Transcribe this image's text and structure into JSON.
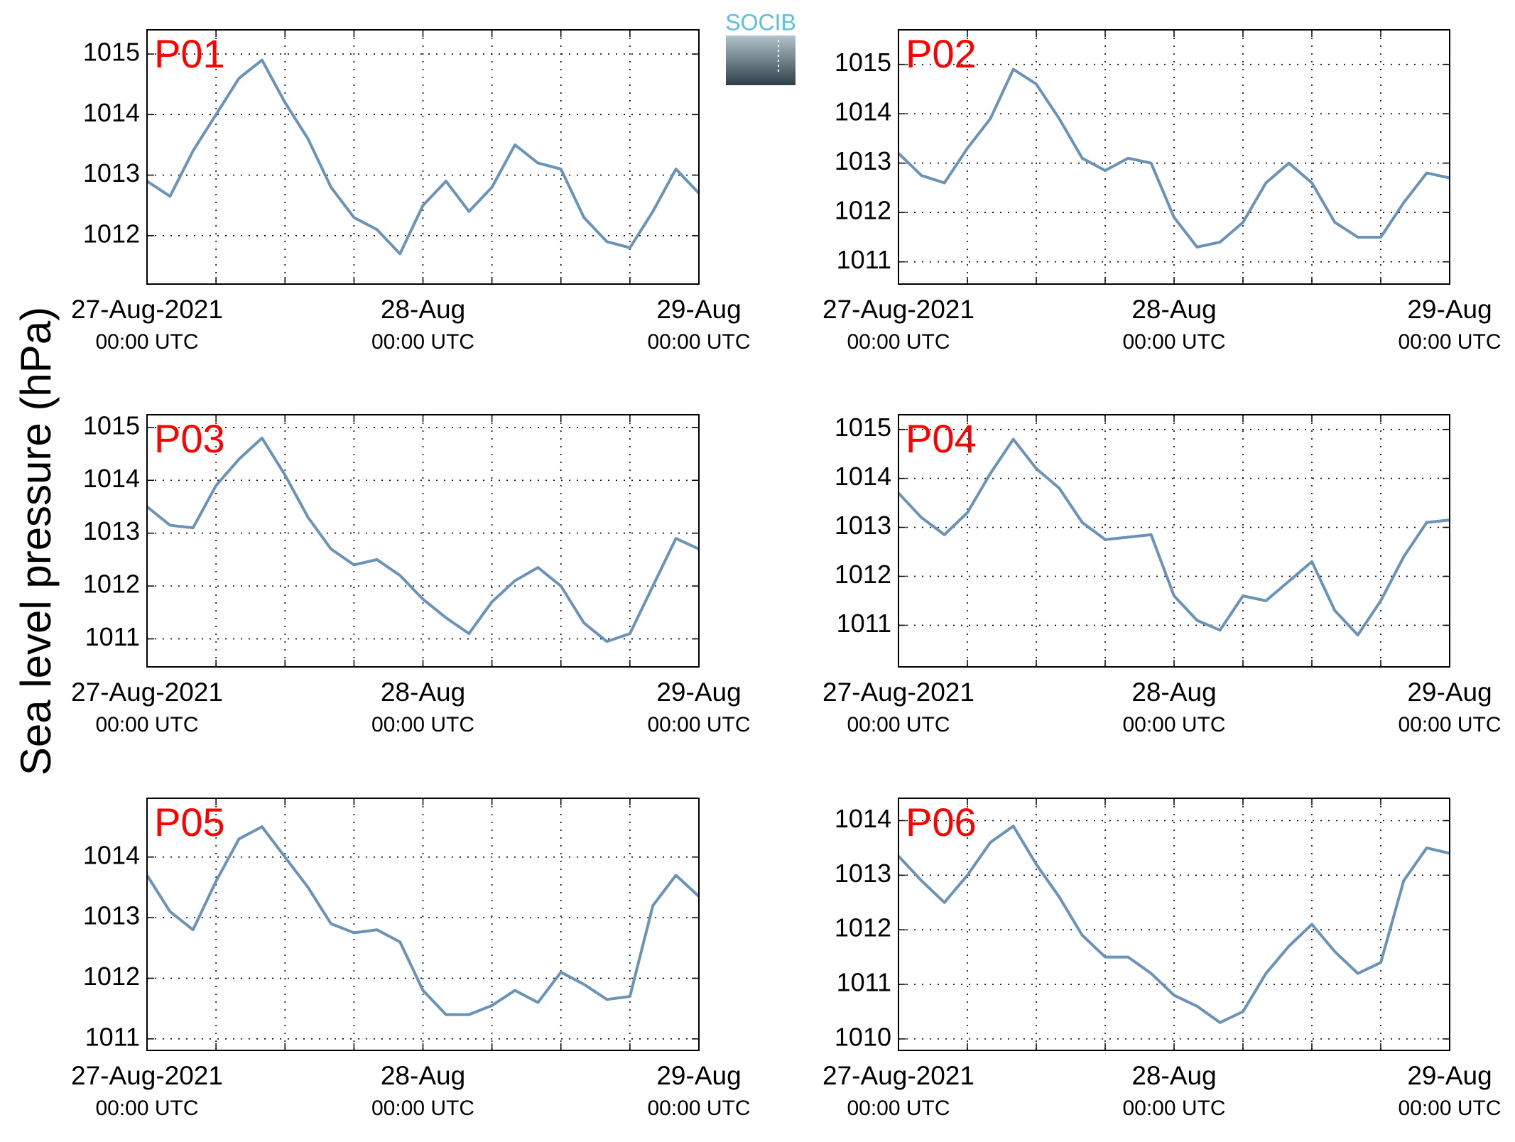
{
  "ylabel": "Sea level pressure (hPa)",
  "logo": "SOCIB",
  "chart_data": [
    {
      "type": "line",
      "title": "P01",
      "x": [
        "2021-08-27T00:00",
        "2021-08-27T02:00",
        "2021-08-27T04:00",
        "2021-08-27T06:00",
        "2021-08-27T08:00",
        "2021-08-27T10:00",
        "2021-08-27T12:00",
        "2021-08-27T14:00",
        "2021-08-27T16:00",
        "2021-08-27T18:00",
        "2021-08-27T20:00",
        "2021-08-27T22:00",
        "2021-08-28T00:00",
        "2021-08-28T02:00",
        "2021-08-28T04:00",
        "2021-08-28T06:00",
        "2021-08-28T08:00",
        "2021-08-28T10:00",
        "2021-08-28T12:00",
        "2021-08-28T14:00",
        "2021-08-28T16:00",
        "2021-08-28T18:00",
        "2021-08-28T20:00",
        "2021-08-28T22:00",
        "2021-08-29T00:00"
      ],
      "series": [
        {
          "color": "#6a93b8",
          "values": [
            1012.9,
            1012.65,
            1013.4,
            1014.0,
            1014.6,
            1014.9,
            1014.2,
            1013.6,
            1012.8,
            1012.3,
            1012.1,
            1011.7,
            1012.5,
            1012.9,
            1012.4,
            1012.8,
            1013.5,
            1013.2,
            1013.1,
            1012.3,
            1011.9,
            1011.8,
            1012.4,
            1013.1,
            1012.7
          ]
        }
      ],
      "xlim": [
        "2021-08-27T00:00",
        "2021-08-29T00:00"
      ],
      "xticks": [
        {
          "value": "2021-08-27T00:00",
          "label": "27-Aug-2021",
          "sublabel": "00:00 UTC"
        },
        "2021-08-27T06:00",
        "2021-08-27T12:00",
        "2021-08-27T18:00",
        {
          "value": "2021-08-28T00:00",
          "label": "28-Aug",
          "sublabel": "00:00 UTC"
        },
        "2021-08-28T06:00",
        "2021-08-28T12:00",
        "2021-08-28T18:00",
        {
          "value": "2021-08-29T00:00",
          "label": "29-Aug",
          "sublabel": "00:00 UTC"
        }
      ],
      "ylim": [
        1011.2,
        1015.4
      ],
      "yticks": [
        1012,
        1013,
        1014,
        1015
      ],
      "grid": true
    },
    {
      "type": "line",
      "title": "P02",
      "x": [
        "2021-08-27T00:00",
        "2021-08-27T02:00",
        "2021-08-27T04:00",
        "2021-08-27T06:00",
        "2021-08-27T08:00",
        "2021-08-27T10:00",
        "2021-08-27T12:00",
        "2021-08-27T14:00",
        "2021-08-27T16:00",
        "2021-08-27T18:00",
        "2021-08-27T20:00",
        "2021-08-27T22:00",
        "2021-08-28T00:00",
        "2021-08-28T02:00",
        "2021-08-28T04:00",
        "2021-08-28T06:00",
        "2021-08-28T08:00",
        "2021-08-28T10:00",
        "2021-08-28T12:00",
        "2021-08-28T14:00",
        "2021-08-28T16:00",
        "2021-08-28T18:00",
        "2021-08-28T20:00",
        "2021-08-28T22:00",
        "2021-08-29T00:00"
      ],
      "series": [
        {
          "color": "#6a93b8",
          "values": [
            1013.2,
            1012.75,
            1012.6,
            1013.3,
            1013.9,
            1014.9,
            1014.6,
            1013.9,
            1013.1,
            1012.85,
            1013.1,
            1013.0,
            1011.9,
            1011.3,
            1011.4,
            1011.8,
            1012.6,
            1013.0,
            1012.6,
            1011.8,
            1011.5,
            1011.5,
            1012.2,
            1012.8,
            1012.7
          ]
        }
      ],
      "xlim": [
        "2021-08-27T00:00",
        "2021-08-29T00:00"
      ],
      "xticks": [
        {
          "value": "2021-08-27T00:00",
          "label": "27-Aug-2021",
          "sublabel": "00:00 UTC"
        },
        "2021-08-27T06:00",
        "2021-08-27T12:00",
        "2021-08-27T18:00",
        {
          "value": "2021-08-28T00:00",
          "label": "28-Aug",
          "sublabel": "00:00 UTC"
        },
        "2021-08-28T06:00",
        "2021-08-28T12:00",
        "2021-08-28T18:00",
        {
          "value": "2021-08-29T00:00",
          "label": "29-Aug",
          "sublabel": "00:00 UTC"
        }
      ],
      "ylim": [
        1010.55,
        1015.7
      ],
      "yticks": [
        1011,
        1012,
        1013,
        1014,
        1015
      ],
      "grid": true
    },
    {
      "type": "line",
      "title": "P03",
      "x": [
        "2021-08-27T00:00",
        "2021-08-27T02:00",
        "2021-08-27T04:00",
        "2021-08-27T06:00",
        "2021-08-27T08:00",
        "2021-08-27T10:00",
        "2021-08-27T12:00",
        "2021-08-27T14:00",
        "2021-08-27T16:00",
        "2021-08-27T18:00",
        "2021-08-27T20:00",
        "2021-08-27T22:00",
        "2021-08-28T00:00",
        "2021-08-28T02:00",
        "2021-08-28T04:00",
        "2021-08-28T06:00",
        "2021-08-28T08:00",
        "2021-08-28T10:00",
        "2021-08-28T12:00",
        "2021-08-28T14:00",
        "2021-08-28T16:00",
        "2021-08-28T18:00",
        "2021-08-28T20:00",
        "2021-08-28T22:00",
        "2021-08-29T00:00"
      ],
      "series": [
        {
          "color": "#6a93b8",
          "values": [
            1013.5,
            1013.15,
            1013.1,
            1013.9,
            1014.4,
            1014.8,
            1014.1,
            1013.3,
            1012.7,
            1012.4,
            1012.5,
            1012.2,
            1011.75,
            1011.4,
            1011.1,
            1011.7,
            1012.1,
            1012.35,
            1012.0,
            1011.3,
            1010.95,
            1011.1,
            1012.0,
            1012.9,
            1012.7
          ]
        }
      ],
      "xlim": [
        "2021-08-27T00:00",
        "2021-08-29T00:00"
      ],
      "xticks": [
        {
          "value": "2021-08-27T00:00",
          "label": "27-Aug-2021",
          "sublabel": "00:00 UTC"
        },
        "2021-08-27T06:00",
        "2021-08-27T12:00",
        "2021-08-27T18:00",
        {
          "value": "2021-08-28T00:00",
          "label": "28-Aug",
          "sublabel": "00:00 UTC"
        },
        "2021-08-28T06:00",
        "2021-08-28T12:00",
        "2021-08-28T18:00",
        {
          "value": "2021-08-29T00:00",
          "label": "29-Aug",
          "sublabel": "00:00 UTC"
        }
      ],
      "ylim": [
        1010.47,
        1015.24
      ],
      "yticks": [
        1011,
        1012,
        1013,
        1014,
        1015
      ],
      "grid": true
    },
    {
      "type": "line",
      "title": "P04",
      "x": [
        "2021-08-27T00:00",
        "2021-08-27T02:00",
        "2021-08-27T04:00",
        "2021-08-27T06:00",
        "2021-08-27T08:00",
        "2021-08-27T10:00",
        "2021-08-27T12:00",
        "2021-08-27T14:00",
        "2021-08-27T16:00",
        "2021-08-27T18:00",
        "2021-08-27T20:00",
        "2021-08-27T22:00",
        "2021-08-28T00:00",
        "2021-08-28T02:00",
        "2021-08-28T04:00",
        "2021-08-28T06:00",
        "2021-08-28T08:00",
        "2021-08-28T10:00",
        "2021-08-28T12:00",
        "2021-08-28T14:00",
        "2021-08-28T16:00",
        "2021-08-28T18:00",
        "2021-08-28T20:00",
        "2021-08-28T22:00",
        "2021-08-29T00:00"
      ],
      "series": [
        {
          "color": "#6a93b8",
          "values": [
            1013.7,
            1013.2,
            1012.85,
            1013.3,
            1014.1,
            1014.8,
            1014.2,
            1013.8,
            1013.1,
            1012.75,
            1012.8,
            1012.85,
            1011.6,
            1011.1,
            1010.9,
            1011.6,
            1011.5,
            1011.9,
            1012.3,
            1011.3,
            1010.8,
            1011.5,
            1012.4,
            1013.1,
            1013.15
          ]
        }
      ],
      "xlim": [
        "2021-08-27T00:00",
        "2021-08-29T00:00"
      ],
      "xticks": [
        {
          "value": "2021-08-27T00:00",
          "label": "27-Aug-2021",
          "sublabel": "00:00 UTC"
        },
        "2021-08-27T06:00",
        "2021-08-27T12:00",
        "2021-08-27T18:00",
        {
          "value": "2021-08-28T00:00",
          "label": "28-Aug",
          "sublabel": "00:00 UTC"
        },
        "2021-08-28T06:00",
        "2021-08-28T12:00",
        "2021-08-28T18:00",
        {
          "value": "2021-08-29T00:00",
          "label": "29-Aug",
          "sublabel": "00:00 UTC"
        }
      ],
      "ylim": [
        1010.15,
        1015.3
      ],
      "yticks": [
        1011,
        1012,
        1013,
        1014,
        1015
      ],
      "grid": true
    },
    {
      "type": "line",
      "title": "P05",
      "x": [
        "2021-08-27T00:00",
        "2021-08-27T02:00",
        "2021-08-27T04:00",
        "2021-08-27T06:00",
        "2021-08-27T08:00",
        "2021-08-27T10:00",
        "2021-08-27T12:00",
        "2021-08-27T14:00",
        "2021-08-27T16:00",
        "2021-08-27T18:00",
        "2021-08-27T20:00",
        "2021-08-27T22:00",
        "2021-08-28T00:00",
        "2021-08-28T02:00",
        "2021-08-28T04:00",
        "2021-08-28T06:00",
        "2021-08-28T08:00",
        "2021-08-28T10:00",
        "2021-08-28T12:00",
        "2021-08-28T14:00",
        "2021-08-28T16:00",
        "2021-08-28T18:00",
        "2021-08-28T20:00",
        "2021-08-28T22:00",
        "2021-08-29T00:00"
      ],
      "series": [
        {
          "color": "#6a93b8",
          "values": [
            1013.7,
            1013.1,
            1012.8,
            1013.6,
            1014.3,
            1014.5,
            1014.0,
            1013.5,
            1012.9,
            1012.75,
            1012.8,
            1012.6,
            1011.8,
            1011.4,
            1011.4,
            1011.55,
            1011.8,
            1011.6,
            1012.1,
            1011.9,
            1011.65,
            1011.7,
            1013.2,
            1013.7,
            1013.35
          ]
        }
      ],
      "xlim": [
        "2021-08-27T00:00",
        "2021-08-29T00:00"
      ],
      "xticks": [
        {
          "value": "2021-08-27T00:00",
          "label": "27-Aug-2021",
          "sublabel": "00:00 UTC"
        },
        "2021-08-27T06:00",
        "2021-08-27T12:00",
        "2021-08-27T18:00",
        {
          "value": "2021-08-28T00:00",
          "label": "28-Aug",
          "sublabel": "00:00 UTC"
        },
        "2021-08-28T06:00",
        "2021-08-28T12:00",
        "2021-08-28T18:00",
        {
          "value": "2021-08-29T00:00",
          "label": "29-Aug",
          "sublabel": "00:00 UTC"
        }
      ],
      "ylim": [
        1010.81,
        1014.97
      ],
      "yticks": [
        1011,
        1012,
        1013,
        1014
      ],
      "grid": true
    },
    {
      "type": "line",
      "title": "P06",
      "x": [
        "2021-08-27T00:00",
        "2021-08-27T02:00",
        "2021-08-27T04:00",
        "2021-08-27T06:00",
        "2021-08-27T08:00",
        "2021-08-27T10:00",
        "2021-08-27T12:00",
        "2021-08-27T14:00",
        "2021-08-27T16:00",
        "2021-08-27T18:00",
        "2021-08-27T20:00",
        "2021-08-27T22:00",
        "2021-08-28T00:00",
        "2021-08-28T02:00",
        "2021-08-28T04:00",
        "2021-08-28T06:00",
        "2021-08-28T08:00",
        "2021-08-28T10:00",
        "2021-08-28T12:00",
        "2021-08-28T14:00",
        "2021-08-28T16:00",
        "2021-08-28T18:00",
        "2021-08-28T20:00",
        "2021-08-28T22:00",
        "2021-08-29T00:00"
      ],
      "series": [
        {
          "color": "#6a93b8",
          "values": [
            1013.35,
            1012.9,
            1012.5,
            1013.0,
            1013.6,
            1013.9,
            1013.2,
            1012.6,
            1011.9,
            1011.5,
            1011.5,
            1011.2,
            1010.8,
            1010.6,
            1010.3,
            1010.5,
            1011.2,
            1011.7,
            1012.1,
            1011.6,
            1011.2,
            1011.4,
            1012.9,
            1013.5,
            1013.4
          ]
        }
      ],
      "xlim": [
        "2021-08-27T00:00",
        "2021-08-29T00:00"
      ],
      "xticks": [
        {
          "value": "2021-08-27T00:00",
          "label": "27-Aug-2021",
          "sublabel": "00:00 UTC"
        },
        "2021-08-27T06:00",
        "2021-08-27T12:00",
        "2021-08-27T18:00",
        {
          "value": "2021-08-28T00:00",
          "label": "28-Aug",
          "sublabel": "00:00 UTC"
        },
        "2021-08-28T06:00",
        "2021-08-28T12:00",
        "2021-08-28T18:00",
        {
          "value": "2021-08-29T00:00",
          "label": "29-Aug",
          "sublabel": "00:00 UTC"
        }
      ],
      "ylim": [
        1009.79,
        1014.41
      ],
      "yticks": [
        1010,
        1011,
        1012,
        1013,
        1014
      ],
      "grid": true
    }
  ]
}
